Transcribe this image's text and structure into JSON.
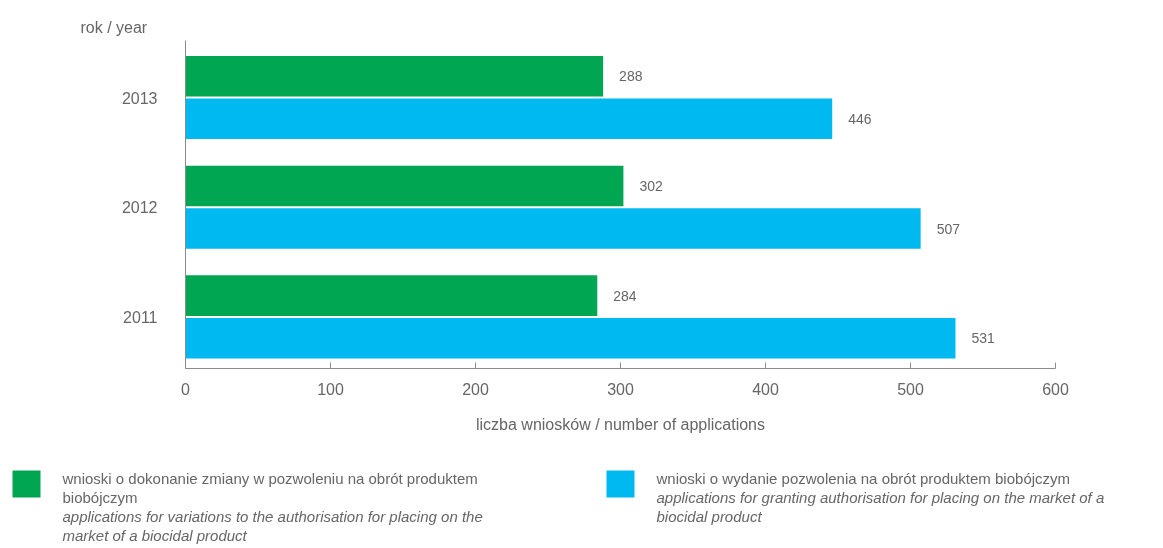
{
  "chart_data": {
    "type": "bar",
    "orientation": "horizontal",
    "ylabel": "rok / year",
    "xlabel": "liczba wniosków / number of applications",
    "categories": [
      "2013",
      "2012",
      "2011"
    ],
    "series": [
      {
        "name": "wnioski o dokonanie zmiany w pozwoleniu na obrót produktem biobójczym\napplications for variations to the authorisation for placing on the market of a biocidal product",
        "color": "#00a651",
        "values": [
          288,
          302,
          284
        ]
      },
      {
        "name": "wnioski o wydanie pozwolenia na obrót produktem biobójczym\napplications for granting authorisation for placing on the market of a biocidal product",
        "color": "#00b9f1",
        "values": [
          446,
          507,
          531
        ]
      }
    ],
    "xlim": [
      0,
      600
    ],
    "xticks": [
      0,
      100,
      200,
      300,
      400,
      500,
      600
    ],
    "data_labels": true,
    "legend": "bottom"
  }
}
